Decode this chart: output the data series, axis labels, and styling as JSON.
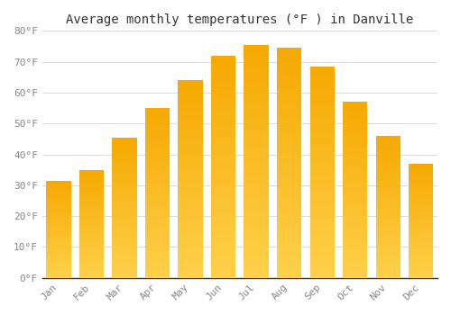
{
  "title": "Average monthly temperatures (°F ) in Danville",
  "months": [
    "Jan",
    "Feb",
    "Mar",
    "Apr",
    "May",
    "Jun",
    "Jul",
    "Aug",
    "Sep",
    "Oct",
    "Nov",
    "Dec"
  ],
  "values": [
    31.5,
    35.0,
    45.5,
    55.0,
    64.0,
    72.0,
    75.5,
    74.5,
    68.5,
    57.0,
    46.0,
    37.0
  ],
  "bar_color_top": "#FFC82E",
  "bar_color_bottom": "#F5A800",
  "bar_edge_color": "#cccccc",
  "background_color": "#ffffff",
  "grid_color": "#dddddd",
  "ylim": [
    0,
    80
  ],
  "yticks": [
    0,
    10,
    20,
    30,
    40,
    50,
    60,
    70,
    80
  ],
  "ylabel_suffix": "°F",
  "title_fontsize": 10,
  "tick_fontsize": 8,
  "tick_color": "#888888",
  "bar_width": 0.75
}
